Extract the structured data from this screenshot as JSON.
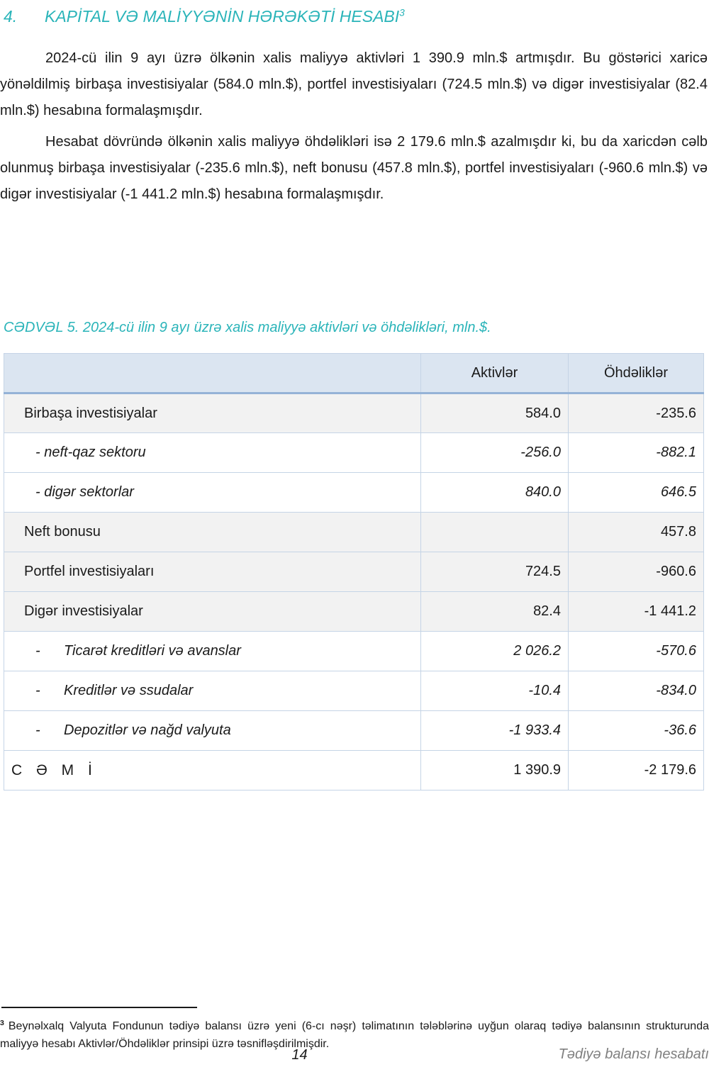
{
  "page": {
    "heading": {
      "number": "4.",
      "title": "KAPİTAL VƏ MALİYYƏNİN HƏRƏKƏTİ HESABI",
      "footnote_ref": "3"
    },
    "paragraphs": [
      "2024-cü ilin 9 ayı üzrə ölkənin xalis maliyyə aktivləri 1 390.9 mln.$ artmışdır. Bu göstərici xaricə yönəldilmiş birbaşa investisiyalar (584.0 mln.$), portfel investisiyaları (724.5 mln.$) və digər investisiyalar (82.4 mln.$) hesabına formalaşmışdır.",
      "Hesabat dövründə ölkənin xalis maliyyə öhdəlikləri isə 2 179.6 mln.$ azalmışdır ki, bu da xaricdən cəlb olunmuş birbaşa investisiyalar (-235.6 mln.$), neft bonusu (457.8 mln.$), portfel investisiyaları (-960.6 mln.$) və digər investisiyalar (-1 441.2 mln.$) hesabına formalaşmışdır."
    ],
    "table": {
      "caption": "CƏDVƏL 5. 2024-cü ilin 9 ayı üzrə xalis maliyyə aktivləri və öhdəlikləri, mln.$.",
      "columns": [
        "",
        "Aktivlər",
        "Öhdəliklər"
      ],
      "rows": [
        {
          "label": "Birbaşa investisiyalar",
          "aktivler": "584.0",
          "ohdelikler": "-235.6",
          "style": "main"
        },
        {
          "label": "- neft-qaz sektoru",
          "aktivler": "-256.0",
          "ohdelikler": "-882.1",
          "style": "sub"
        },
        {
          "label": "- digər sektorlar",
          "aktivler": "840.0",
          "ohdelikler": "646.5",
          "style": "sub"
        },
        {
          "label": "Neft bonusu",
          "aktivler": "",
          "ohdelikler": "457.8",
          "style": "main"
        },
        {
          "label": "Portfel investisiyaları",
          "aktivler": "724.5",
          "ohdelikler": "-960.6",
          "style": "main"
        },
        {
          "label": "Digər investisiyalar",
          "aktivler": "82.4",
          "ohdelikler": "-1 441.2",
          "style": "main"
        },
        {
          "dash": "-",
          "label": "Ticarət kreditləri və avanslar",
          "aktivler": "2 026.2",
          "ohdelikler": "-570.6",
          "style": "sub2"
        },
        {
          "dash": "-",
          "label": "Kreditlər və ssudalar",
          "aktivler": "-10.4",
          "ohdelikler": "-834.0",
          "style": "sub2"
        },
        {
          "dash": "-",
          "label": "Depozitlər və nağd valyuta",
          "aktivler": "-1 933.4",
          "ohdelikler": "-36.6",
          "style": "sub2"
        },
        {
          "label": "C Ə M İ",
          "aktivler": "1 390.9",
          "ohdelikler": "-2 179.6",
          "style": "total"
        }
      ]
    },
    "footnote": {
      "marker": "3",
      "text": "Beynəlxalq Valyuta Fondunun tədiyə balansı üzrə yeni (6-cı nəşr) təlimatının tələblərinə uyğun olaraq tədiyə balansının strukturunda maliyyə hesabı Aktivlər/Öhdəliklər prinsipi üzrə təsnifləşdirilmişdir."
    },
    "footer": {
      "page_number": "14",
      "report_title": "Tədiyə balansı hesabatı"
    },
    "colors": {
      "accent_teal": "#2ab4b9",
      "table_header_bg": "#dbe5f1",
      "table_header_rule": "#95b3d7",
      "table_alt_row_bg": "#f2f2f2",
      "table_border": "#c5d4e6",
      "footer_text": "#808080"
    }
  }
}
